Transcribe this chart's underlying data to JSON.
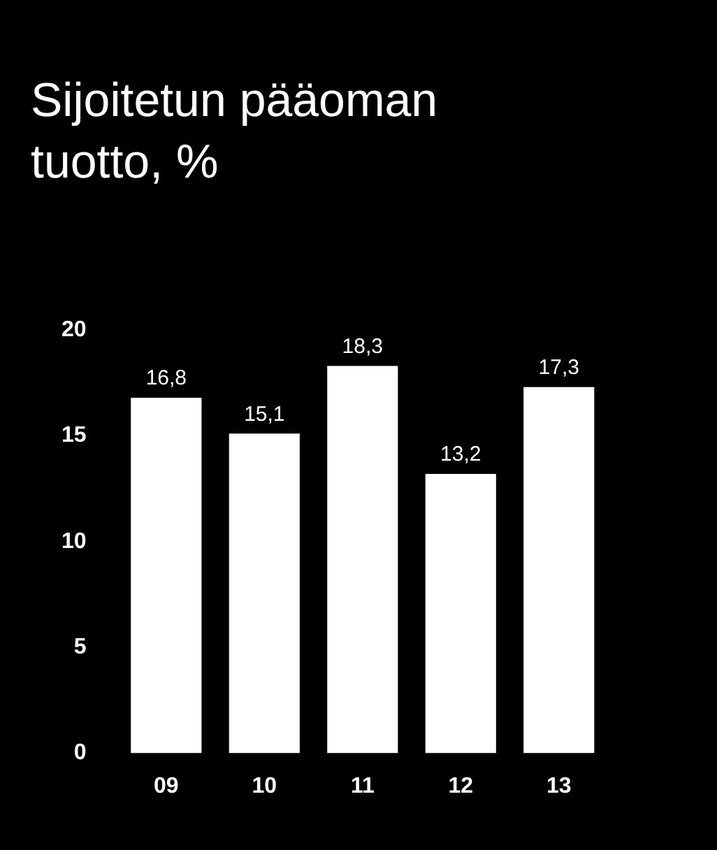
{
  "chart_data": {
    "type": "bar",
    "title": "Sijoitetun pääoman tuotto, %",
    "categories": [
      "09",
      "10",
      "11",
      "12",
      "13"
    ],
    "values": [
      16.8,
      15.1,
      18.3,
      13.2,
      17.3
    ],
    "value_labels": [
      "16,8",
      "15,1",
      "18,3",
      "13,2",
      "17,3"
    ],
    "color": "#ffffff",
    "ylim": [
      0,
      20
    ],
    "yticks": [
      0,
      5,
      10,
      15,
      20
    ],
    "grid": false,
    "legend": false
  }
}
